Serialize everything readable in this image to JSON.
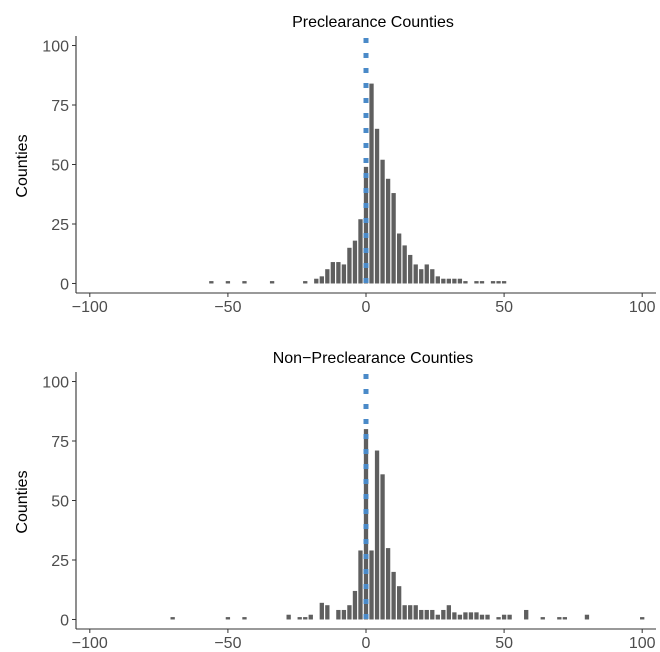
{
  "colors": {
    "bar": "#5f5f5f",
    "ref_line": "#4a8ac8",
    "axis": "#333333"
  },
  "chart_data": [
    {
      "type": "bar",
      "title": "Preclearance Counties",
      "ylabel": "Counties",
      "xlabel": "",
      "xlim": [
        -105,
        105
      ],
      "ylim": [
        -4,
        104
      ],
      "x_ticks": [
        -100,
        -50,
        0,
        50,
        100
      ],
      "x_tick_labels": [
        "−100",
        "−50",
        "0",
        "50",
        "100"
      ],
      "y_ticks": [
        0,
        25,
        50,
        75,
        100
      ],
      "y_tick_labels": [
        "0",
        "25",
        "50",
        "75",
        "100"
      ],
      "bin_width": 2,
      "x": [
        -56,
        -50,
        -44,
        -34,
        -22,
        -18,
        -16,
        -14,
        -12,
        -10,
        -8,
        -6,
        -4,
        -2,
        0,
        2,
        4,
        6,
        8,
        10,
        12,
        14,
        16,
        18,
        20,
        22,
        24,
        26,
        28,
        30,
        32,
        34,
        36,
        40,
        42,
        46,
        48,
        50
      ],
      "values": [
        1,
        1,
        1,
        1,
        1,
        2,
        3,
        6,
        9,
        9,
        8,
        15,
        18,
        27,
        49,
        84,
        65,
        52,
        44,
        38,
        21,
        16,
        12,
        8,
        6,
        8,
        6,
        3,
        2,
        2,
        2,
        2,
        1,
        1,
        1,
        1,
        1,
        1
      ],
      "reference_line": {
        "x": 0,
        "style": "dotted"
      },
      "grid": false
    },
    {
      "type": "bar",
      "title": "Non−Preclearance Counties",
      "ylabel": "Counties",
      "xlabel": "",
      "xlim": [
        -105,
        105
      ],
      "ylim": [
        -4,
        104
      ],
      "x_ticks": [
        -100,
        -50,
        0,
        50,
        100
      ],
      "x_tick_labels": [
        "−100",
        "−50",
        "0",
        "50",
        "100"
      ],
      "y_ticks": [
        0,
        25,
        50,
        75,
        100
      ],
      "y_tick_labels": [
        "0",
        "25",
        "50",
        "75",
        "100"
      ],
      "bin_width": 2,
      "x": [
        -70,
        -50,
        -44,
        -28,
        -24,
        -22,
        -20,
        -16,
        -14,
        -10,
        -8,
        -6,
        -4,
        -2,
        0,
        2,
        4,
        6,
        8,
        10,
        12,
        14,
        16,
        18,
        20,
        22,
        24,
        26,
        28,
        30,
        32,
        34,
        36,
        38,
        40,
        42,
        44,
        48,
        50,
        52,
        58,
        64,
        70,
        72,
        80,
        100
      ],
      "values": [
        1,
        1,
        1,
        2,
        1,
        1,
        2,
        7,
        6,
        4,
        4,
        6,
        12,
        29,
        80,
        29,
        71,
        61,
        30,
        20,
        14,
        6,
        6,
        6,
        4,
        4,
        4,
        2,
        4,
        6,
        3,
        2,
        3,
        3,
        3,
        2,
        2,
        1,
        2,
        2,
        4,
        1,
        1,
        1,
        2,
        1
      ],
      "reference_line": {
        "x": 0,
        "style": "dotted"
      },
      "grid": false
    }
  ]
}
